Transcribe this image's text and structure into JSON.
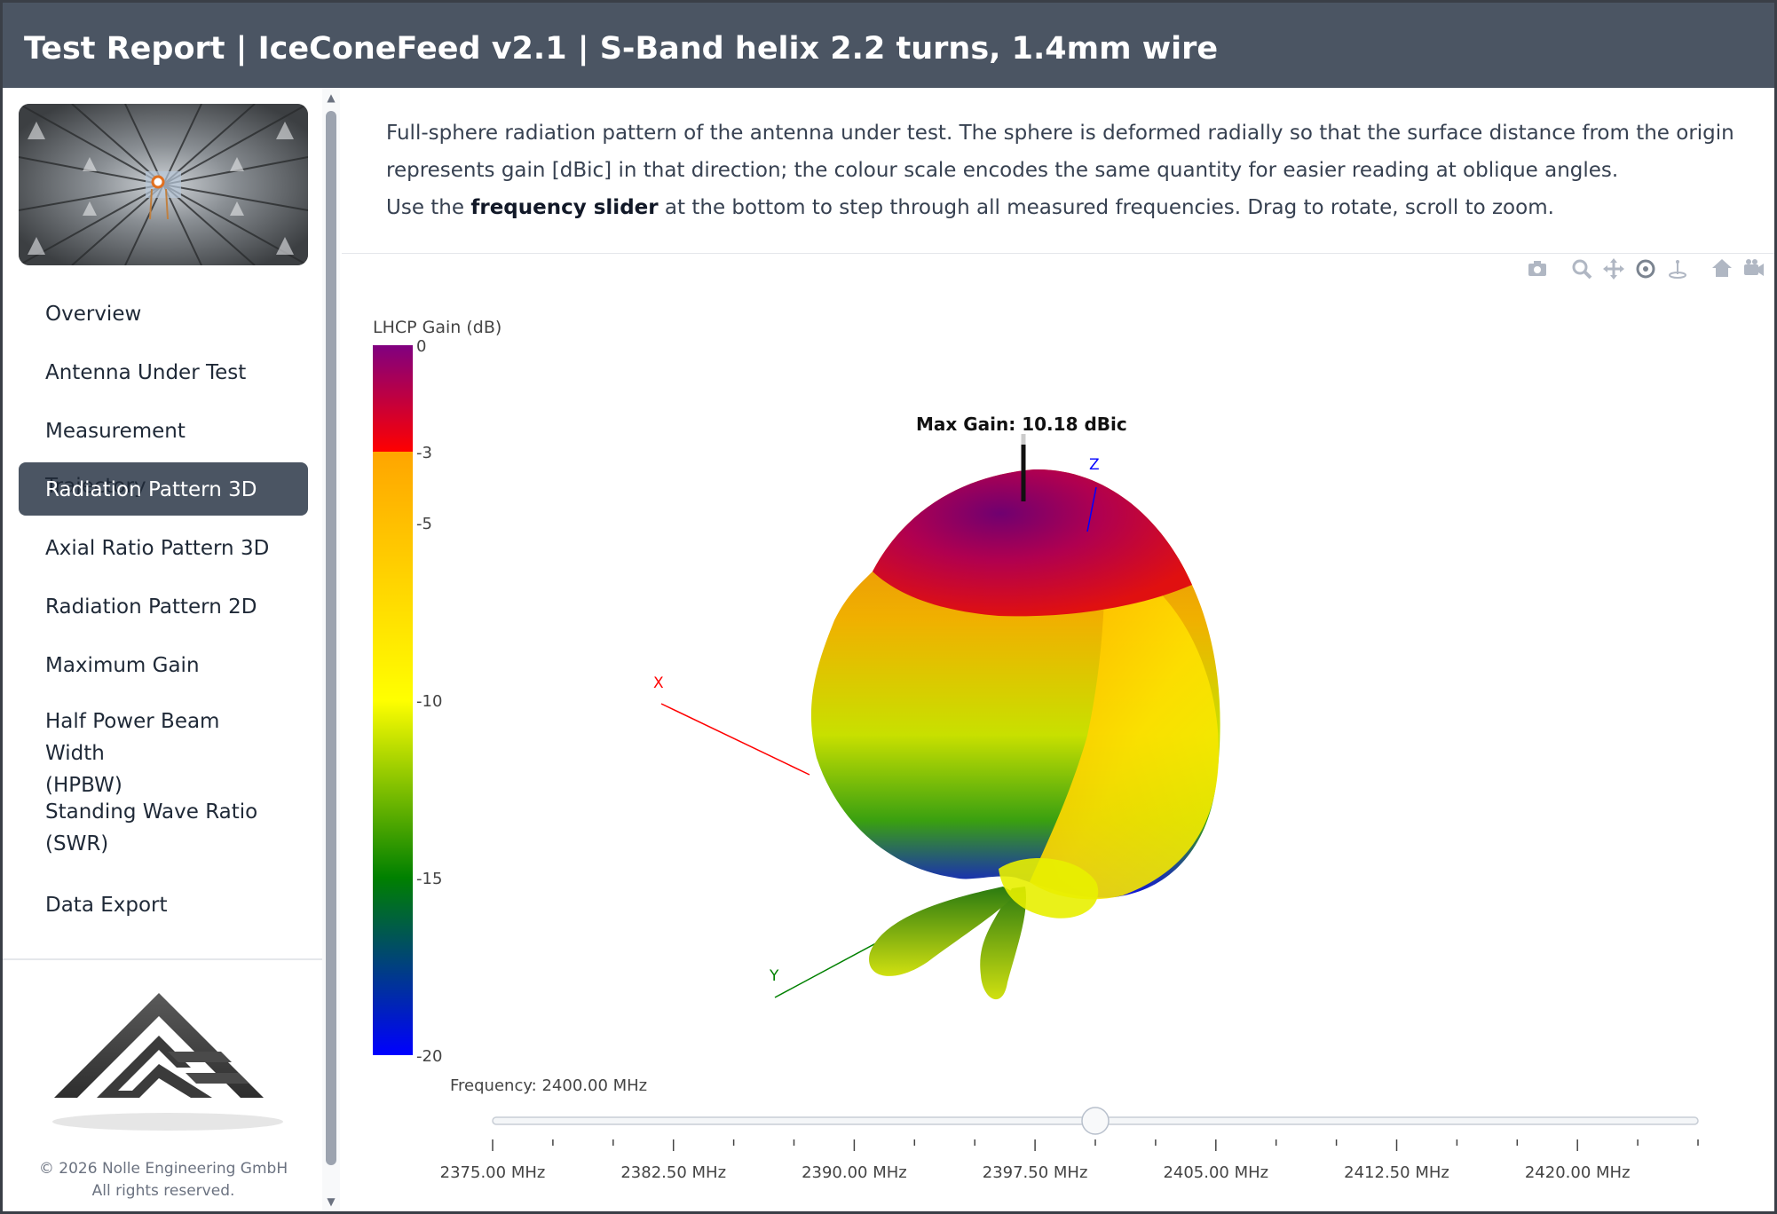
{
  "header": {
    "title": "Test Report | IceConeFeed v2.1 | S-Band helix 2.2 turns, 1.4mm wire"
  },
  "sidebar": {
    "nav": [
      {
        "label": "Overview",
        "active": false
      },
      {
        "label": "Antenna Under Test",
        "active": false
      },
      {
        "label": "Measurement Trajectory",
        "active": false
      },
      {
        "label": "Radiation Pattern 3D",
        "active": true
      },
      {
        "label": "Axial Ratio Pattern 3D",
        "active": false
      },
      {
        "label": "Radiation Pattern 2D",
        "active": false
      },
      {
        "label": "Maximum Gain",
        "active": false
      },
      {
        "label": "Half Power Beam Width",
        "label2": "(HPBW)",
        "active": false
      },
      {
        "label": "Standing Wave Ratio",
        "label2": "(SWR)",
        "active": false
      },
      {
        "label": "Data Export",
        "active": false
      }
    ],
    "copyright_line1": "© 2026 Nolle Engineering GmbH",
    "copyright_line2": "All rights reserved."
  },
  "description": {
    "para1": "Full-sphere radiation pattern of the antenna under test. The sphere is deformed radially so that the surface distance from the origin represents gain [dBic] in that direction; the colour scale encodes the same quantity for easier reading at oblique angles.",
    "para2_prefix": "Use the ",
    "para2_bold": "frequency slider",
    "para2_suffix": " at the bottom to step through all measured frequencies. Drag to rotate, scroll to zoom."
  },
  "modebar_icons": [
    "camera-icon",
    "zoom-icon",
    "pan-icon",
    "orbit-rotate-icon",
    "turntable-rotate-icon",
    "home-icon",
    "camera-view-icon"
  ],
  "plot": {
    "colorbar_title": "LHCP Gain (dB)",
    "colorbar_ticks": [
      "0",
      "-3",
      "-5",
      "-10",
      "-15",
      "-20"
    ],
    "colorbar_tick_values": [
      0,
      -3,
      -5,
      -10,
      -15,
      -20
    ],
    "colorbar_range": [
      -20,
      0
    ],
    "colors": {
      "purple": "#800080",
      "red": "#ff0000",
      "orange": "#ffa500",
      "yellow": "#ffff00",
      "green": "#008000",
      "blue": "#0000ff"
    },
    "max_gain_label": "Max Gain: 10.18 dBic",
    "axis_labels": {
      "x": "X",
      "y": "Y",
      "z": "Z"
    },
    "axis_colors": {
      "x": "#ff0000",
      "y": "#008000",
      "z": "#0000ff"
    },
    "slider_label": "Frequency: 2400.00 MHz",
    "slider_value": 2400,
    "slider_min": 2375,
    "slider_max": 2425,
    "slider_ticks": [
      "2375.00 MHz",
      "2382.50 MHz",
      "2390.00 MHz",
      "2397.50 MHz",
      "2405.00 MHz",
      "2412.50 MHz",
      "2420.00 MHz"
    ],
    "slider_tick_values": [
      2375,
      2382.5,
      2390,
      2397.5,
      2405,
      2412.5,
      2420
    ]
  }
}
